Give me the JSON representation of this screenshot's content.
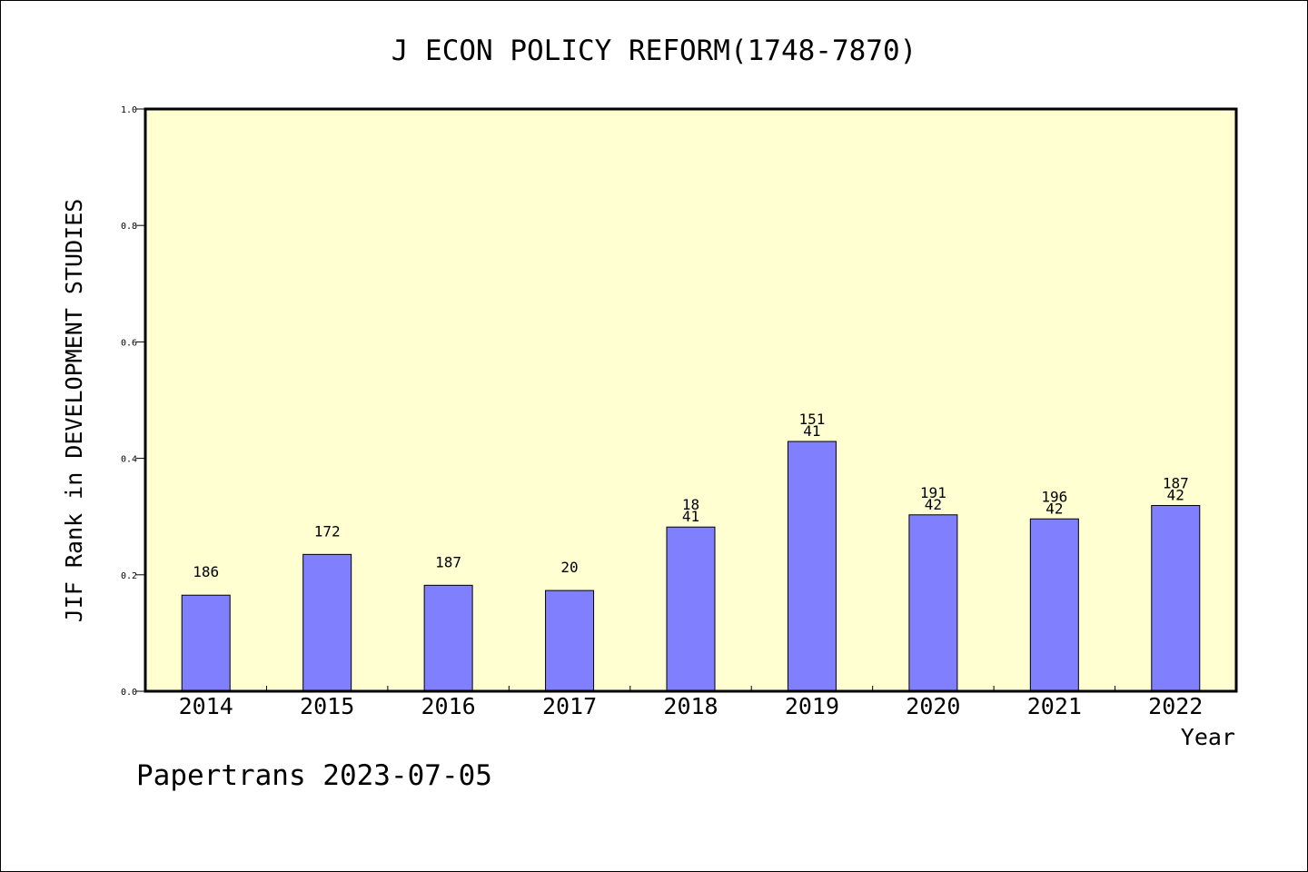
{
  "chart_data": {
    "type": "bar",
    "title": "J ECON POLICY REFORM(1748-7870)",
    "xlabel": "Year",
    "ylabel": "JIF Rank in DEVELOPMENT STUDIES",
    "footer": "Papertrans 2023-07-05",
    "categories": [
      "2014",
      "2015",
      "2016",
      "2017",
      "2018",
      "2019",
      "2020",
      "2021",
      "2022"
    ],
    "values": [
      0.165,
      0.235,
      0.182,
      0.173,
      0.282,
      0.429,
      0.303,
      0.296,
      0.319
    ],
    "bar_labels": [
      [
        "186"
      ],
      [
        "172"
      ],
      [
        "187"
      ],
      [
        "20"
      ],
      [
        "18",
        "41"
      ],
      [
        "151",
        "41"
      ],
      [
        "191",
        "42"
      ],
      [
        "196",
        "42"
      ],
      [
        "187",
        "42"
      ]
    ],
    "ylim": [
      0,
      1.0
    ],
    "yticks": [
      "0.0",
      "0.2",
      "0.4",
      "0.6",
      "0.8",
      "1.0"
    ],
    "grid": false,
    "colors": {
      "plot_background": "#ffffd2",
      "bar_fill": "#8080ff",
      "bar_stroke": "#000000"
    }
  }
}
